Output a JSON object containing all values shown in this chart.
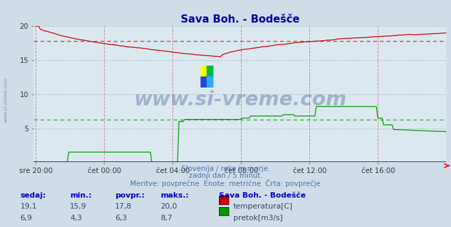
{
  "title": "Sava Boh. - Bodešče",
  "bg_color": "#d0dce8",
  "plot_bg_color": "#dce8f0",
  "grid_color": "#b0c4d4",
  "grid_color_v": "#c8a0a0",
  "x_labels": [
    "sre 20:00",
    "čet 00:00",
    "čet 04:00",
    "čet 08:00",
    "čet 12:00",
    "čet 16:00"
  ],
  "x_ticks_norm": [
    0.0,
    0.1667,
    0.3333,
    0.5,
    0.6667,
    0.8333
  ],
  "ylim": [
    0,
    20
  ],
  "yticks": [
    5,
    10,
    15,
    20
  ],
  "temp_avg": 17.8,
  "flow_avg": 6.3,
  "footer_line1": "Slovenija / reke in morje.",
  "footer_line2": "zadnji dan / 5 minut.",
  "footer_line3": "Meritve: povrpečne  Enote: metrične  Črta: povrpečje",
  "footer_line3_exact": "Meritve: povprečne  Enote: metrične  Črta: povprečje",
  "legend_title": "Sava Boh. - Bodešče",
  "col_headers": [
    "sedaj:",
    "min.:",
    "povpr.:",
    "maks.:"
  ],
  "row1_vals": [
    "19,1",
    "15,9",
    "17,8",
    "20,0"
  ],
  "row2_vals": [
    "6,9",
    "4,3",
    "6,3",
    "8,7"
  ],
  "temp_color": "#cc0000",
  "flow_color": "#009900",
  "avg_color_temp": "#cc4444",
  "avg_color_flow": "#44aa44",
  "text_color_blue": "#3355aa",
  "text_color_dark": "#224488",
  "watermark_text": "www.si-vreme.com",
  "watermark_color": "#1a3a7a",
  "watermark_alpha": 0.3,
  "sidebar_text": "www.si-vreme.com",
  "sidebar_color": "#6688aa",
  "footer_color": "#4477aa"
}
